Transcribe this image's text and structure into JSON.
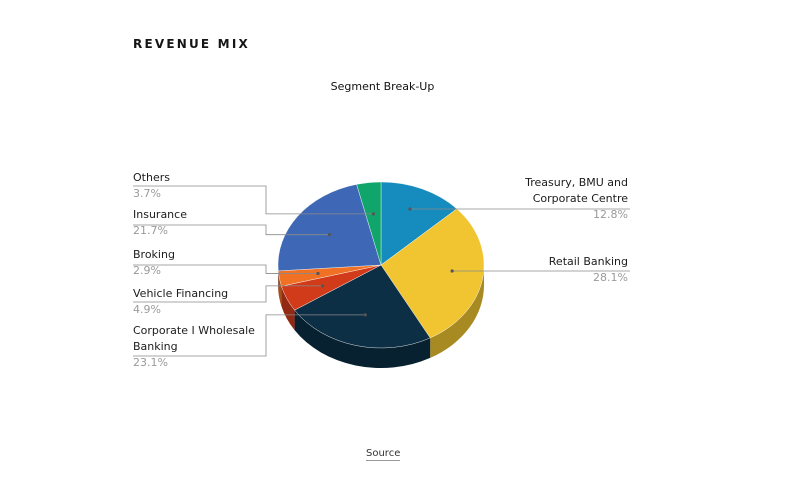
{
  "header": {
    "title": "REVENUE MIX"
  },
  "footer": {
    "source_label": "Source"
  },
  "chart_data": {
    "type": "pie",
    "title": "Segment Break-Up",
    "unit": "%",
    "slices": [
      {
        "name": "Treasury, BMU and Corporate Centre",
        "value": 12.8,
        "label": "12.8%",
        "color": "#168bbd"
      },
      {
        "name": "Retail Banking",
        "value": 28.1,
        "label": "28.1%",
        "color": "#f0c531"
      },
      {
        "name": "Corporate I Wholesale Banking",
        "value": 23.1,
        "label": "23.1%",
        "color": "#0c2f45"
      },
      {
        "name": "Vehicle Financing",
        "value": 4.9,
        "label": "4.9%",
        "color": "#d13b1a"
      },
      {
        "name": "Broking",
        "value": 2.9,
        "label": "2.9%",
        "color": "#f07024"
      },
      {
        "name": "Insurance",
        "value": 21.7,
        "label": "21.7%",
        "color": "#3e68b5"
      },
      {
        "name": "Others",
        "value": 3.7,
        "label": "3.7%",
        "color": "#10a56b"
      }
    ]
  }
}
